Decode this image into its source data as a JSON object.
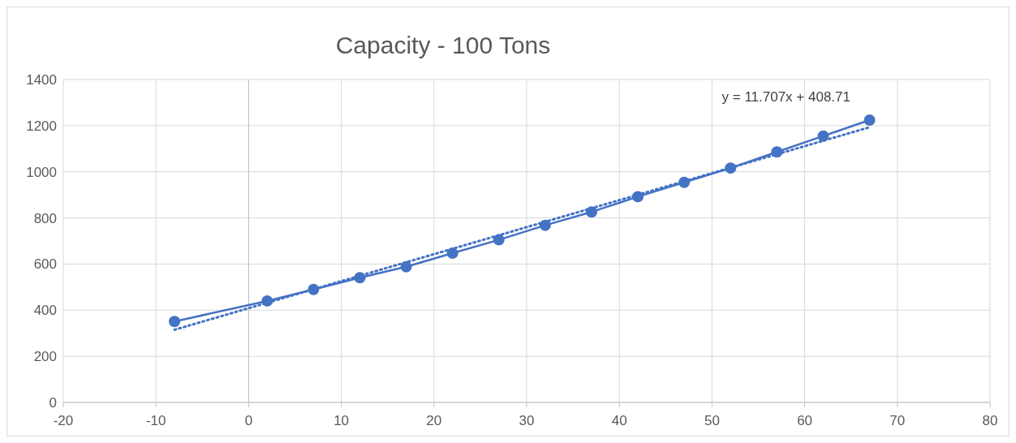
{
  "chart_data": {
    "type": "line",
    "title": "Capacity - 100 Tons",
    "x": [
      -8,
      2,
      7,
      12,
      17,
      22,
      27,
      32,
      37,
      42,
      47,
      52,
      57,
      62,
      67
    ],
    "series": [
      {
        "color": "#4472c4",
        "values": [
          351,
          440,
          490,
          541,
          588,
          647,
          705,
          768,
          826,
          892,
          954,
          1016,
          1086,
          1155,
          1224
        ],
        "marker": "circle",
        "line_style": "solid"
      },
      {
        "type": "line",
        "color": "#4472c4",
        "x": [
          -8,
          67
        ],
        "values": [
          315,
          1193
        ],
        "marker": "none",
        "line_style": "dotted"
      }
    ],
    "xlim": [
      -20,
      80
    ],
    "xticks": [
      -20,
      -10,
      0,
      10,
      20,
      30,
      40,
      50,
      60,
      70,
      80
    ],
    "ylim": [
      0,
      1400
    ],
    "yticks": [
      0,
      200,
      400,
      600,
      800,
      1000,
      1200,
      1400
    ],
    "grid": true,
    "annotations": [
      "y = 11.707x + 408.71"
    ]
  }
}
